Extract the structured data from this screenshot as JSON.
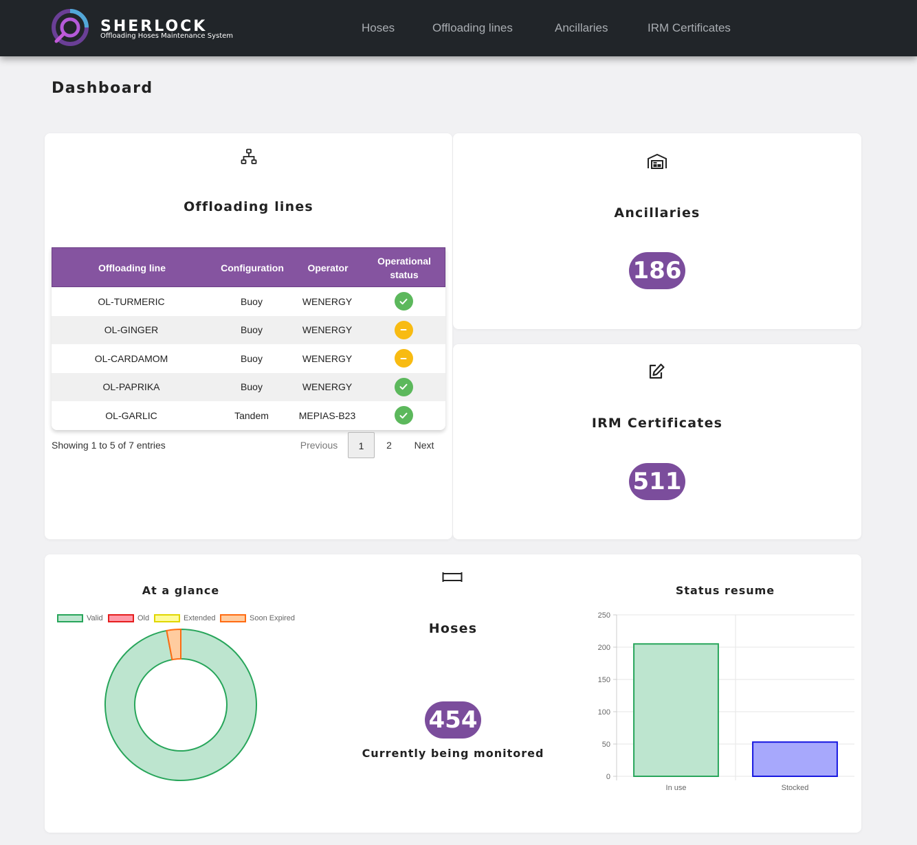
{
  "brand": {
    "name": "SHERLOCK",
    "subtitle": "Offloading Hoses Maintenance System",
    "accent": "#7b4d9c"
  },
  "nav": {
    "items": [
      {
        "label": "Hoses"
      },
      {
        "label": "Offloading lines"
      },
      {
        "label": "Ancillaries"
      },
      {
        "label": "IRM Certificates"
      }
    ]
  },
  "page": {
    "title": "Dashboard"
  },
  "offloading": {
    "title": "Offloading lines",
    "icon": "sitemap-icon",
    "columns": [
      "Offloading line",
      "Configuration",
      "Operator",
      "Operational status"
    ],
    "rows": [
      {
        "line": "OL-TURMERIC",
        "configuration": "Buoy",
        "operator": "WENERGY",
        "status": "ok"
      },
      {
        "line": "OL-GINGER",
        "configuration": "Buoy",
        "operator": "WENERGY",
        "status": "warn"
      },
      {
        "line": "OL-CARDAMOM",
        "configuration": "Buoy",
        "operator": "WENERGY",
        "status": "warn"
      },
      {
        "line": "OL-PAPRIKA",
        "configuration": "Buoy",
        "operator": "WENERGY",
        "status": "ok"
      },
      {
        "line": "OL-GARLIC",
        "configuration": "Tandem",
        "operator": "MEPIAS-B23",
        "status": "ok"
      }
    ],
    "info": "Showing 1 to 5 of 7 entries",
    "pagination": {
      "previous": "Previous",
      "pages": [
        "1",
        "2"
      ],
      "current": "1",
      "next": "Next"
    }
  },
  "ancillaries": {
    "title": "Ancillaries",
    "count": "186",
    "icon": "warehouse-icon"
  },
  "irm": {
    "title": "IRM Certificates",
    "count": "511",
    "icon": "edit-icon"
  },
  "hoses": {
    "title": "Hoses",
    "count": "454",
    "caption": "Currently being monitored",
    "icon": "hose-icon"
  },
  "glance": {
    "title": "At a glance"
  },
  "status_resume": {
    "title": "Status resume"
  },
  "chart_data": [
    {
      "type": "pie",
      "title": "At a glance",
      "legend_position": "top",
      "labels": [
        "Valid",
        "Old",
        "Extended",
        "Soon Expired"
      ],
      "values": [
        97,
        0,
        0,
        3
      ],
      "colors": [
        "#bde5cf",
        "#ff9aa8",
        "#fffc9a",
        "#ffcc9f"
      ],
      "borders": [
        "#27a55a",
        "#e51e1e",
        "#e0d600",
        "#ff6b12"
      ]
    },
    {
      "type": "bar",
      "title": "Status resume",
      "categories": [
        "In use",
        "Stocked"
      ],
      "values": [
        205,
        53
      ],
      "ylim": [
        0,
        250
      ],
      "yticks": [
        "250",
        "200",
        "150",
        "100",
        "50",
        "0"
      ],
      "colors": [
        "#bde5cf",
        "#a7a8fc"
      ],
      "borders": [
        "#27a55a",
        "#1616e0"
      ],
      "grid": true
    }
  ]
}
